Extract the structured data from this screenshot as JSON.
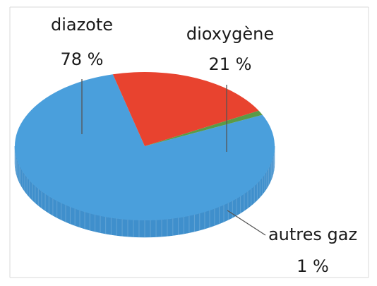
{
  "chart_data": {
    "type": "pie",
    "style": "3d",
    "slices": [
      {
        "label": "diazote",
        "value": 78,
        "value_text": "78 %",
        "color": "#4a9fdc",
        "side_color": "#3f8fcc"
      },
      {
        "label": "dioxygène",
        "value": 21,
        "value_text": "21 %",
        "color": "#e8432f",
        "side_color": "#c9302a"
      },
      {
        "label": "autres gaz",
        "value": 1,
        "value_text": "1 %",
        "color": "#5a9a47",
        "side_color": "#3f7a33"
      }
    ],
    "unit": "%"
  }
}
